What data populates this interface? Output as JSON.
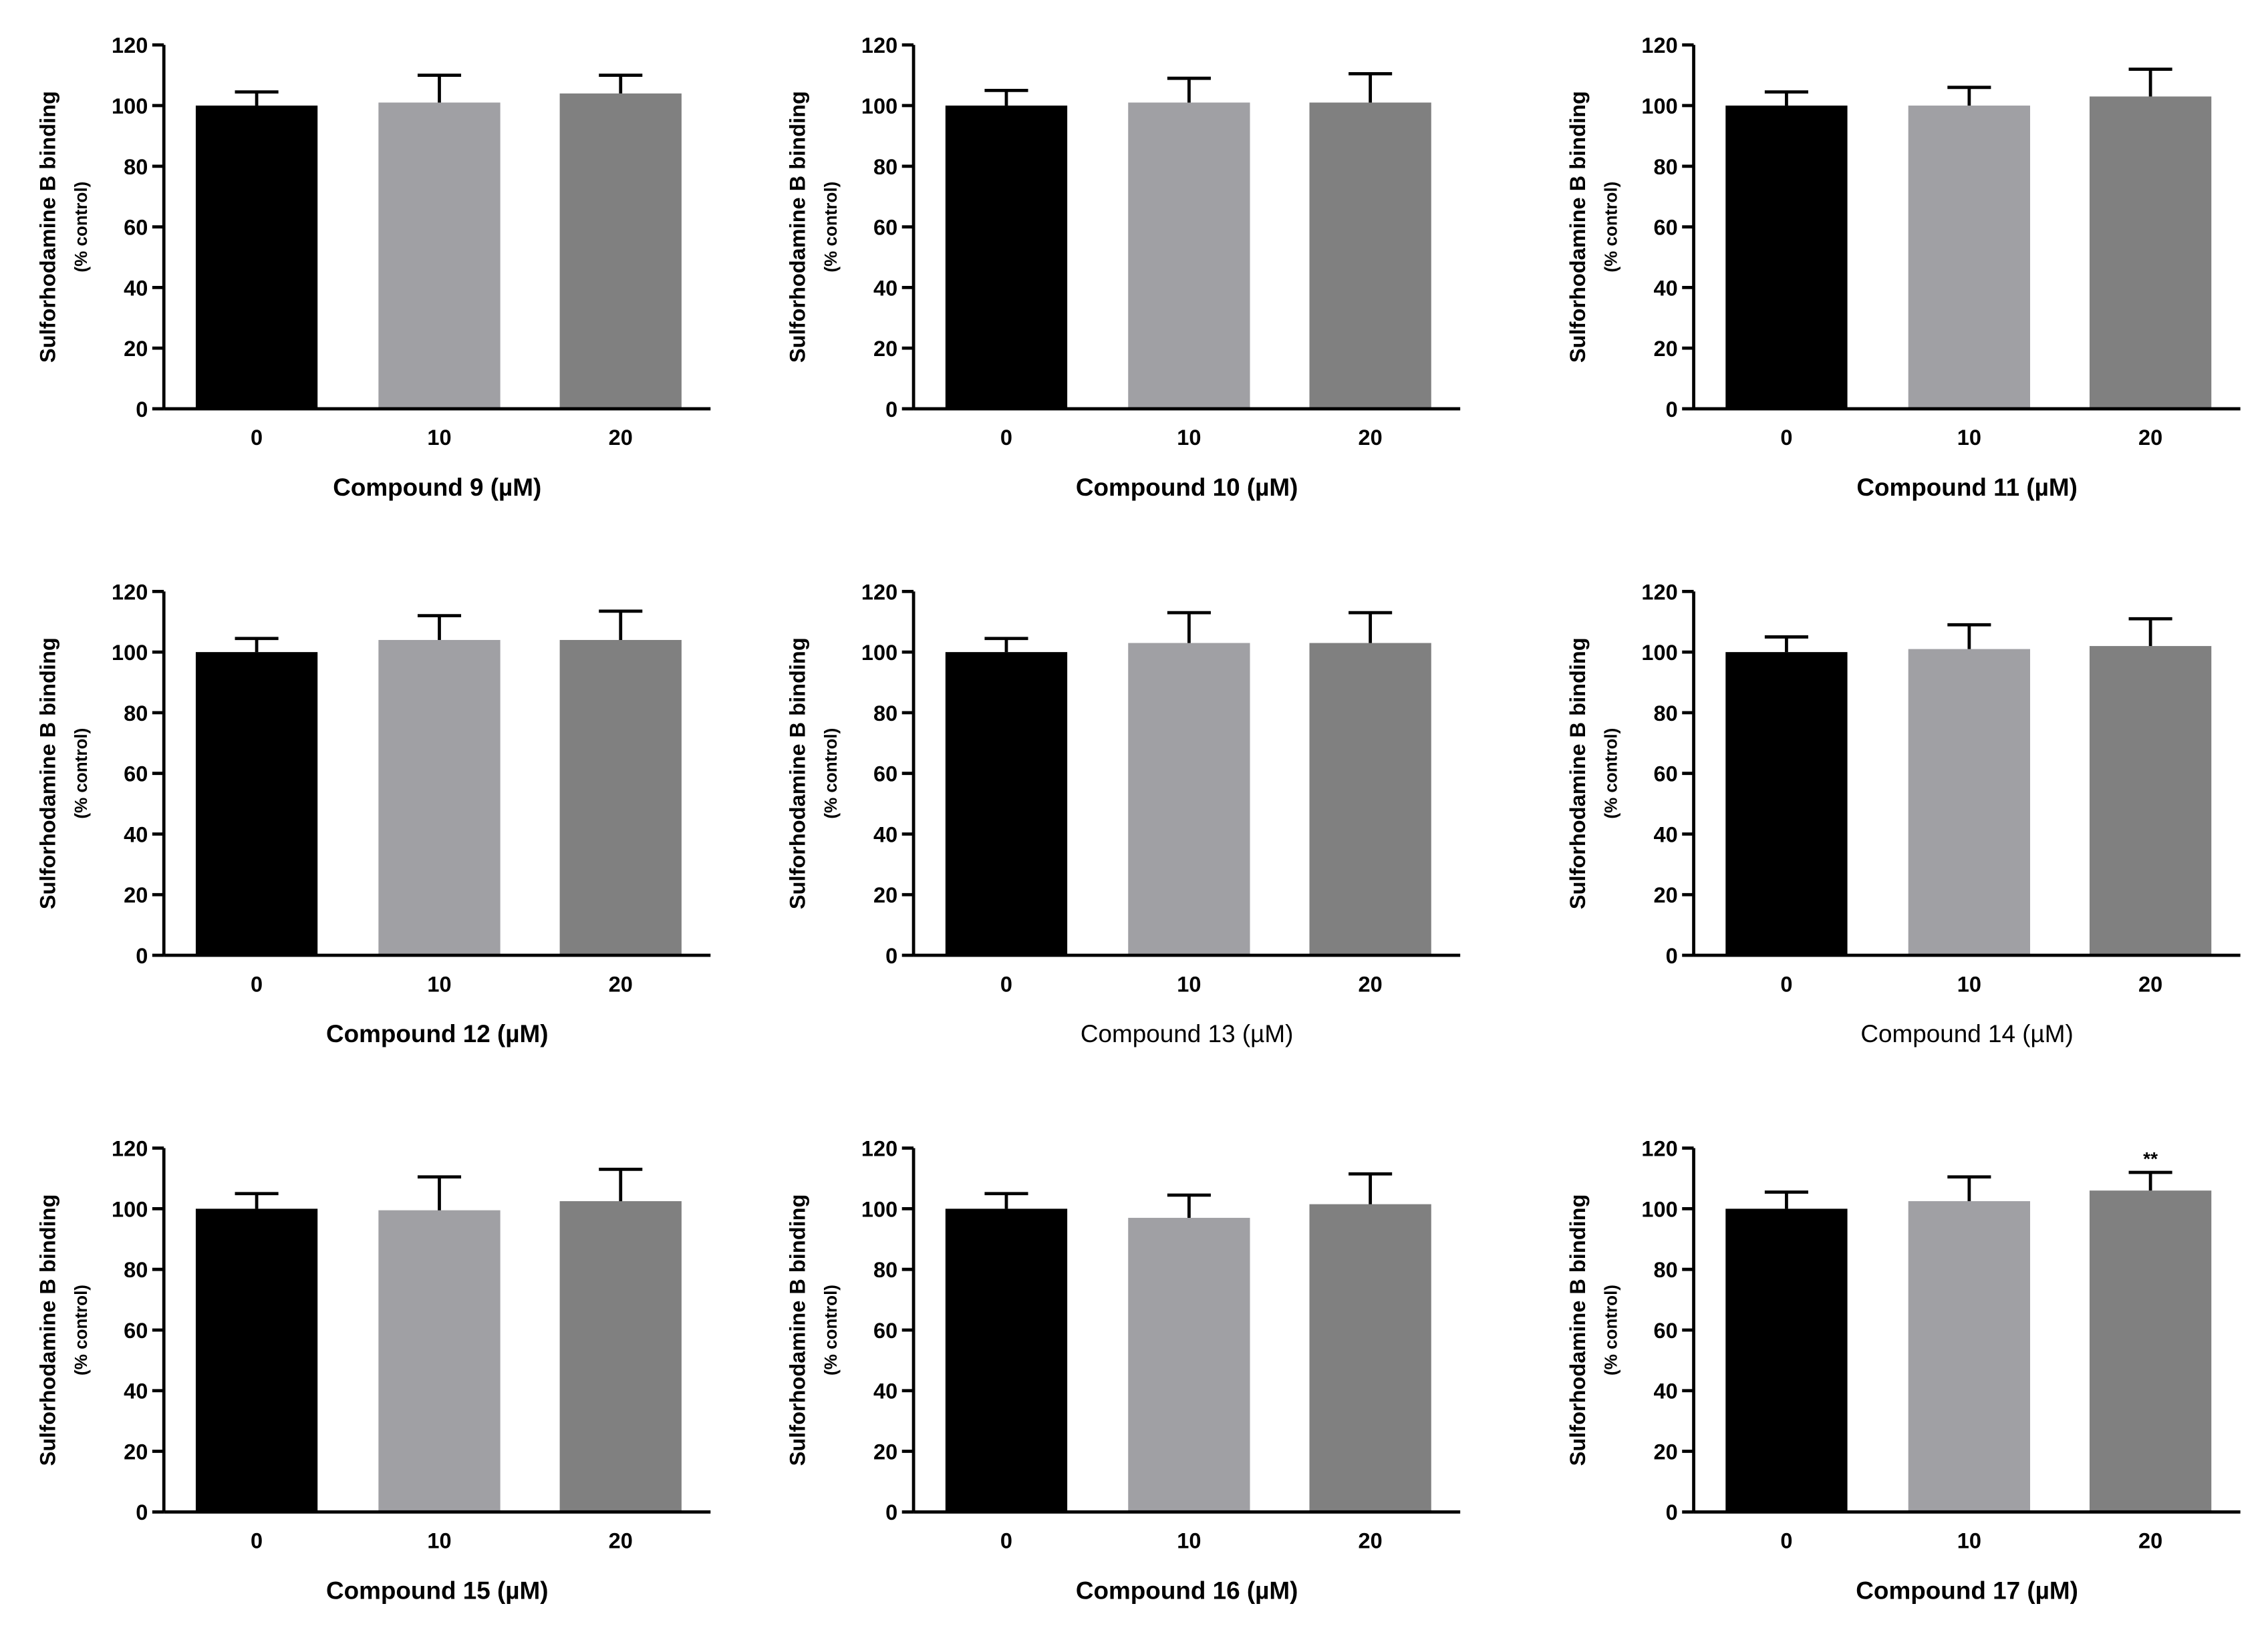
{
  "figure": {
    "colors": {
      "0": "#000000",
      "10": "#a0a0a4",
      "20": "#808080",
      "axis": "#000000"
    }
  },
  "chart_data": [
    {
      "type": "bar",
      "title": "",
      "xlabel": "Compound 9 (µM)",
      "ylabel": "Sulforhodamine B binding",
      "ylabel_sub": "(% control)",
      "ylim": [
        0,
        120
      ],
      "yticks": [
        0,
        20,
        40,
        60,
        80,
        100,
        120
      ],
      "categories": [
        "0",
        "10",
        "20"
      ],
      "values": [
        100,
        101,
        104
      ],
      "errors": [
        4.5,
        9,
        6
      ],
      "annotations": [
        "",
        "",
        ""
      ],
      "xlabel_bold": true
    },
    {
      "type": "bar",
      "title": "",
      "xlabel": "Compound 10 (µM)",
      "ylabel": "Sulforhodamine B binding",
      "ylabel_sub": "(% control)",
      "ylim": [
        0,
        120
      ],
      "yticks": [
        0,
        20,
        40,
        60,
        80,
        100,
        120
      ],
      "categories": [
        "0",
        "10",
        "20"
      ],
      "values": [
        100,
        101,
        101
      ],
      "errors": [
        5,
        8,
        9.5
      ],
      "annotations": [
        "",
        "",
        ""
      ],
      "xlabel_bold": true
    },
    {
      "type": "bar",
      "title": "",
      "xlabel": "Compound 11 (µM)",
      "ylabel": "Sulforhodamine B binding",
      "ylabel_sub": "(% control)",
      "ylim": [
        0,
        120
      ],
      "yticks": [
        0,
        20,
        40,
        60,
        80,
        100,
        120
      ],
      "categories": [
        "0",
        "10",
        "20"
      ],
      "values": [
        100,
        100,
        103
      ],
      "errors": [
        4.5,
        6,
        9
      ],
      "annotations": [
        "",
        "",
        ""
      ],
      "xlabel_bold": true
    },
    {
      "type": "bar",
      "title": "",
      "xlabel": "Compound 12 (µM)",
      "ylabel": "Sulforhodamine B binding",
      "ylabel_sub": "(% control)",
      "ylim": [
        0,
        120
      ],
      "yticks": [
        0,
        20,
        40,
        60,
        80,
        100,
        120
      ],
      "categories": [
        "0",
        "10",
        "20"
      ],
      "values": [
        100,
        104,
        104
      ],
      "errors": [
        4.5,
        8,
        9.5
      ],
      "annotations": [
        "",
        "",
        ""
      ],
      "xlabel_bold": true
    },
    {
      "type": "bar",
      "title": "",
      "xlabel": "Compound 13 (µM)",
      "ylabel": "Sulforhodamine B binding",
      "ylabel_sub": "(% control)",
      "ylim": [
        0,
        120
      ],
      "yticks": [
        0,
        20,
        40,
        60,
        80,
        100,
        120
      ],
      "categories": [
        "0",
        "10",
        "20"
      ],
      "values": [
        100,
        103,
        103
      ],
      "errors": [
        4.5,
        10,
        10
      ],
      "annotations": [
        "",
        "",
        ""
      ],
      "xlabel_bold": false
    },
    {
      "type": "bar",
      "title": "",
      "xlabel": "Compound 14 (µM)",
      "ylabel": "Sulforhodamine B binding",
      "ylabel_sub": "(% control)",
      "ylim": [
        0,
        120
      ],
      "yticks": [
        0,
        20,
        40,
        60,
        80,
        100,
        120
      ],
      "categories": [
        "0",
        "10",
        "20"
      ],
      "values": [
        100,
        101,
        102
      ],
      "errors": [
        5,
        8,
        9
      ],
      "annotations": [
        "",
        "",
        ""
      ],
      "xlabel_bold": false
    },
    {
      "type": "bar",
      "title": "",
      "xlabel": "Compound 15 (µM)",
      "ylabel": "Sulforhodamine B binding",
      "ylabel_sub": "(% control)",
      "ylim": [
        0,
        120
      ],
      "yticks": [
        0,
        20,
        40,
        60,
        80,
        100,
        120
      ],
      "categories": [
        "0",
        "10",
        "20"
      ],
      "values": [
        100,
        99.5,
        102.5
      ],
      "errors": [
        5,
        11,
        10.5
      ],
      "annotations": [
        "",
        "",
        ""
      ],
      "xlabel_bold": true
    },
    {
      "type": "bar",
      "title": "",
      "xlabel": "Compound 16 (µM)",
      "ylabel": "Sulforhodamine B binding",
      "ylabel_sub": "(% control)",
      "ylim": [
        0,
        120
      ],
      "yticks": [
        0,
        20,
        40,
        60,
        80,
        100,
        120
      ],
      "categories": [
        "0",
        "10",
        "20"
      ],
      "values": [
        100,
        97,
        101.5
      ],
      "errors": [
        5,
        7.5,
        10
      ],
      "annotations": [
        "",
        "",
        ""
      ],
      "xlabel_bold": true
    },
    {
      "type": "bar",
      "title": "",
      "xlabel": "Compound 17 (µM)",
      "ylabel": "Sulforhodamine B binding",
      "ylabel_sub": "(% control)",
      "ylim": [
        0,
        120
      ],
      "yticks": [
        0,
        20,
        40,
        60,
        80,
        100,
        120
      ],
      "categories": [
        "0",
        "10",
        "20"
      ],
      "values": [
        100,
        102.5,
        106
      ],
      "errors": [
        5.5,
        8,
        6
      ],
      "annotations": [
        "",
        "",
        "**"
      ],
      "xlabel_bold": true
    }
  ]
}
